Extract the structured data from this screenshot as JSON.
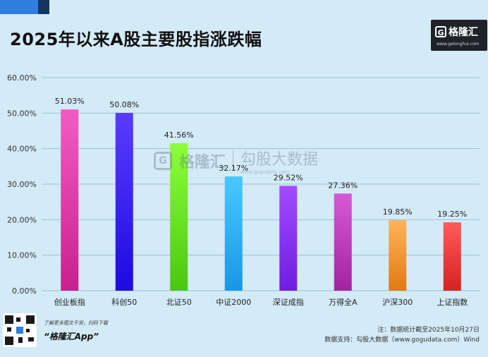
{
  "header": {
    "title": "2025年以来A股主要股指涨跌幅"
  },
  "logo": {
    "text": "格隆汇",
    "letter": "G",
    "url": "www.gelonghui.com"
  },
  "watermark": {
    "brand_a": "格隆汇",
    "brand_b": "勾股大数据",
    "letter": "G",
    "url_b": "www.gogudata.com"
  },
  "footer": {
    "qr_note": "了解更多图文干货，扫码下载",
    "app_name": "“格隆汇App”",
    "note_line": "注：数据统计截至2025年10月27日",
    "source_line": "数据支持：勾股大数据（www.gogudata.com）Wind"
  },
  "chart_data": {
    "type": "bar",
    "categories": [
      "创业板指",
      "科创50",
      "北证50",
      "中证2000",
      "深证成指",
      "万得全A",
      "沪深300",
      "上证指数"
    ],
    "values": [
      51.03,
      50.08,
      41.56,
      32.17,
      29.52,
      27.36,
      19.85,
      19.25
    ],
    "value_labels": [
      "51.03%",
      "50.08%",
      "41.56%",
      "32.17%",
      "29.52%",
      "27.36%",
      "19.85%",
      "19.25%"
    ],
    "colors": [
      [
        "#f25bc4",
        "#c9208f"
      ],
      [
        "#5a3cff",
        "#1d0ae0"
      ],
      [
        "#8cff3a",
        "#4ac612"
      ],
      [
        "#49c8ff",
        "#1996e4"
      ],
      [
        "#a24bff",
        "#6f1ee0"
      ],
      [
        "#d65ad6",
        "#a2239f"
      ],
      [
        "#ffb45a",
        "#e07a14"
      ],
      [
        "#ff5a5a",
        "#d62222"
      ]
    ],
    "ylim": [
      0,
      60
    ],
    "y_ticks": [
      0,
      10,
      20,
      30,
      40,
      50,
      60
    ],
    "y_tick_labels": [
      "0.00%",
      "10.00%",
      "20.00%",
      "30.00%",
      "40.00%",
      "50.00%",
      "60.00%"
    ],
    "grid": true
  }
}
